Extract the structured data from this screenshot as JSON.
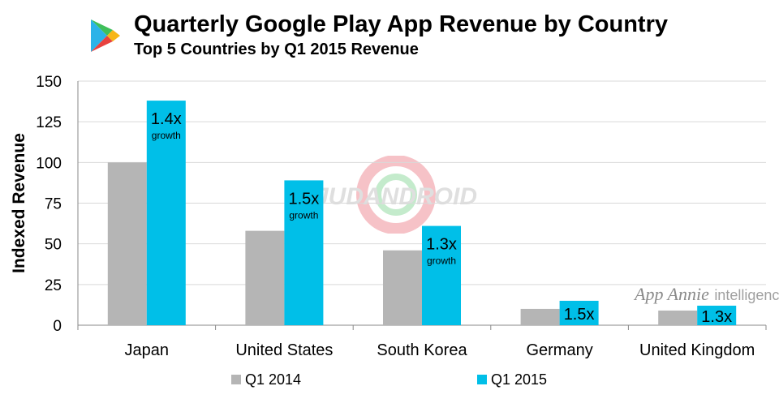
{
  "header": {
    "title": "Quarterly Google Play App Revenue by Country",
    "subtitle": "Top 5 Countries by Q1 2015 Revenue"
  },
  "logo": {
    "icon": "google-play-icon"
  },
  "watermark": {
    "text": "JUDANDROID"
  },
  "brand": {
    "name": "App Annie",
    "suffix": "intelligence"
  },
  "colors": {
    "q1_2014": "#b5b5b5",
    "q1_2015": "#00bfe8"
  },
  "chart_data": {
    "type": "bar",
    "ylabel": "Indexed Revenue",
    "xlabel": "",
    "ylim": [
      0,
      150
    ],
    "yticks": [
      0,
      25,
      50,
      75,
      100,
      125,
      150
    ],
    "grid": true,
    "legend_position": "bottom",
    "categories": [
      "Japan",
      "United States",
      "South Korea",
      "Germany",
      "United Kingdom"
    ],
    "series": [
      {
        "name": "Q1 2014",
        "values": [
          100,
          58,
          46,
          10,
          9
        ]
      },
      {
        "name": "Q1 2015",
        "values": [
          138,
          89,
          61,
          15,
          12
        ]
      }
    ],
    "annotations": [
      {
        "category": "Japan",
        "main": "1.4x",
        "sub": "growth"
      },
      {
        "category": "United States",
        "main": "1.5x",
        "sub": "growth"
      },
      {
        "category": "South Korea",
        "main": "1.3x",
        "sub": "growth"
      },
      {
        "category": "Germany",
        "main": "1.5x",
        "sub": ""
      },
      {
        "category": "United Kingdom",
        "main": "1.3x",
        "sub": ""
      }
    ]
  }
}
